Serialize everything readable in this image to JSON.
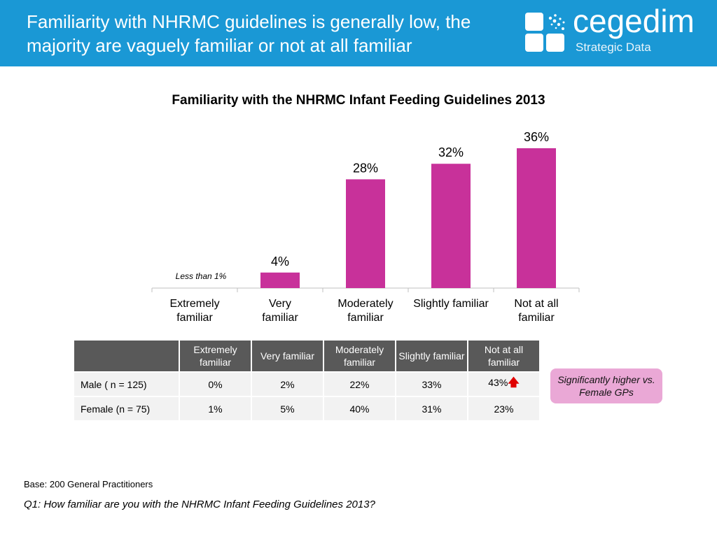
{
  "header": {
    "title": "Familiarity with NHRMC guidelines is generally low, the majority are vaguely familiar or not at all familiar",
    "logo_word": "cegedim",
    "logo_sub": "Strategic Data",
    "bg_color": "#1a98d5"
  },
  "chart_data": {
    "type": "bar",
    "title": "Familiarity with the NHRMC Infant Feeding Guidelines 2013",
    "categories": [
      "Extremely familiar",
      "Very familiar",
      "Moderately familiar",
      "Slightly familiar",
      "Not at all familiar"
    ],
    "values": [
      0,
      4,
      28,
      32,
      36
    ],
    "value_labels": [
      "",
      "4%",
      "28%",
      "32%",
      "36%"
    ],
    "annotation": "Less than 1%",
    "bar_color": "#c8319a",
    "ylim": [
      0,
      40
    ],
    "grid": false
  },
  "table": {
    "headers": [
      "Extremely familiar",
      "Very familiar",
      "Moderately familiar",
      "Slightly familiar",
      "Not at all familiar"
    ],
    "rows": [
      {
        "label": "Male ( n = 125)",
        "values": [
          "0%",
          "2%",
          "22%",
          "33%",
          "43%"
        ]
      },
      {
        "label": "Female (n = 75)",
        "values": [
          "1%",
          "5%",
          "40%",
          "31%",
          "23%"
        ]
      }
    ],
    "highlight_arrow": "up-arrow-icon"
  },
  "callout": {
    "text": "Significantly higher vs. Female GPs",
    "color": "#eaa8d6"
  },
  "footer": {
    "base": "Base: 200 General Practitioners",
    "question": "Q1: How familiar are you with the NHRMC Infant Feeding Guidelines 2013?"
  }
}
